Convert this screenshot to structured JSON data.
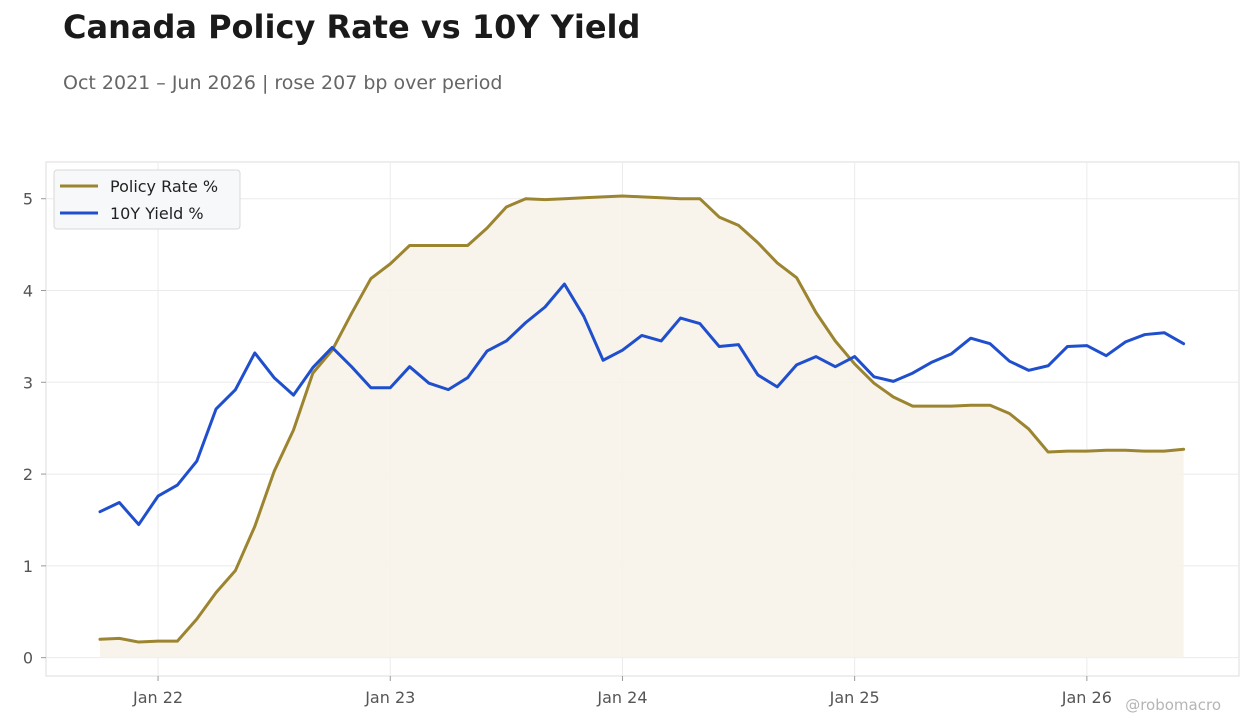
{
  "header": {
    "title": "Canada Policy Rate vs 10Y Yield",
    "subtitle": "Oct 2021 – Jun 2026 | rose 207 bp over period"
  },
  "watermark": "@robomacro",
  "colors": {
    "policy": "#9c8530",
    "policy_fill": "#f7f3ea",
    "yield": "#1f4fcc",
    "grid": "#ebebeb",
    "frame": "#dddddd"
  },
  "chart_data": {
    "type": "line",
    "title": "Canada Policy Rate vs 10Y Yield",
    "subtitle": "Oct 2021 – Jun 2026 | rose 207 bp over period",
    "x_start": "2021-10",
    "x_ticks": [
      {
        "date": "2022-01",
        "label": "Jan 22"
      },
      {
        "date": "2023-01",
        "label": "Jan 23"
      },
      {
        "date": "2024-01",
        "label": "Jan 24"
      },
      {
        "date": "2025-01",
        "label": "Jan 25"
      },
      {
        "date": "2026-01",
        "label": "Jan 26"
      }
    ],
    "x": [
      "2021-10",
      "2021-11",
      "2021-12",
      "2022-01",
      "2022-02",
      "2022-03",
      "2022-04",
      "2022-05",
      "2022-06",
      "2022-07",
      "2022-08",
      "2022-09",
      "2022-10",
      "2022-11",
      "2022-12",
      "2023-01",
      "2023-02",
      "2023-03",
      "2023-04",
      "2023-05",
      "2023-06",
      "2023-07",
      "2023-08",
      "2023-09",
      "2023-10",
      "2023-11",
      "2023-12",
      "2024-01",
      "2024-02",
      "2024-03",
      "2024-04",
      "2024-05",
      "2024-06",
      "2024-07",
      "2024-08",
      "2024-09",
      "2024-10",
      "2024-11",
      "2024-12",
      "2025-01",
      "2025-02",
      "2025-03",
      "2025-04",
      "2025-05",
      "2025-06",
      "2025-07",
      "2025-08",
      "2025-09",
      "2025-10",
      "2025-11",
      "2025-12",
      "2026-01",
      "2026-02",
      "2026-03",
      "2026-04",
      "2026-05",
      "2026-06"
    ],
    "ylim": [
      -0.2,
      5.4
    ],
    "y_ticks": [
      0,
      1,
      2,
      3,
      4,
      5
    ],
    "grid": true,
    "legend": "top-left",
    "series": [
      {
        "name": "Policy Rate %",
        "fill": true,
        "values": [
          0.2,
          0.21,
          0.17,
          0.18,
          0.18,
          0.42,
          0.71,
          0.95,
          1.43,
          2.03,
          2.48,
          3.1,
          3.35,
          3.75,
          4.13,
          4.29,
          4.49,
          4.49,
          4.49,
          4.49,
          4.68,
          4.91,
          5.0,
          4.99,
          5.0,
          5.01,
          5.02,
          5.03,
          5.02,
          5.01,
          5.0,
          5.0,
          4.8,
          4.71,
          4.52,
          4.3,
          4.14,
          3.76,
          3.45,
          3.2,
          2.99,
          2.84,
          2.74,
          2.74,
          2.74,
          2.75,
          2.75,
          2.66,
          2.49,
          2.24,
          2.25,
          2.25,
          2.26,
          2.26,
          2.25,
          2.25,
          2.27
        ]
      },
      {
        "name": "10Y Yield %",
        "fill": false,
        "values": [
          1.59,
          1.69,
          1.45,
          1.76,
          1.88,
          2.14,
          2.71,
          2.92,
          3.32,
          3.05,
          2.86,
          3.16,
          3.38,
          3.17,
          2.94,
          2.94,
          3.17,
          2.99,
          2.92,
          3.05,
          3.34,
          3.45,
          3.65,
          3.82,
          4.07,
          3.72,
          3.24,
          3.35,
          3.51,
          3.45,
          3.7,
          3.64,
          3.39,
          3.41,
          3.08,
          2.95,
          3.19,
          3.28,
          3.17,
          3.28,
          3.06,
          3.01,
          3.1,
          3.22,
          3.31,
          3.48,
          3.42,
          3.23,
          3.13,
          3.18,
          3.39,
          3.4,
          3.29,
          3.44,
          3.52,
          3.54,
          3.42
        ]
      }
    ]
  }
}
